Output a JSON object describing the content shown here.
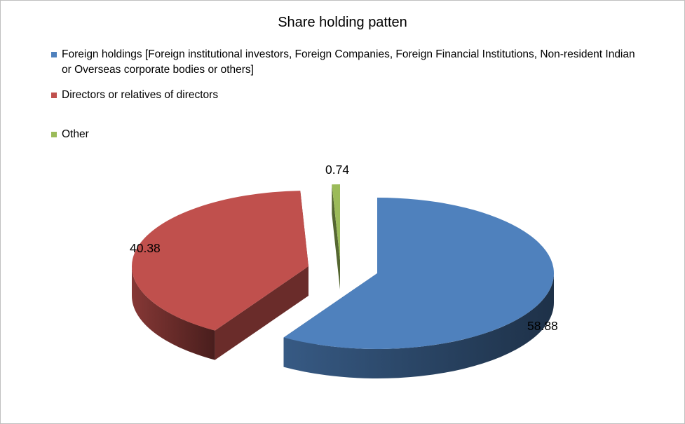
{
  "chart_data": {
    "type": "pie",
    "title": "Share holding patten",
    "legend_position": "top",
    "categories": [
      "Foreign holdings [Foreign institutional investors, Foreign Companies, Foreign Financial Institutions, Non-resident Indian or Overseas corporate bodies or others]",
      "Directors or relatives of directors",
      "Other"
    ],
    "values": [
      58.88,
      40.38,
      0.74
    ],
    "data_labels": [
      "58.88",
      "40.38",
      "0.74"
    ],
    "colors": [
      "#4f81bd",
      "#c0504d",
      "#9bbb59"
    ],
    "exploded": true,
    "style": "3d"
  }
}
